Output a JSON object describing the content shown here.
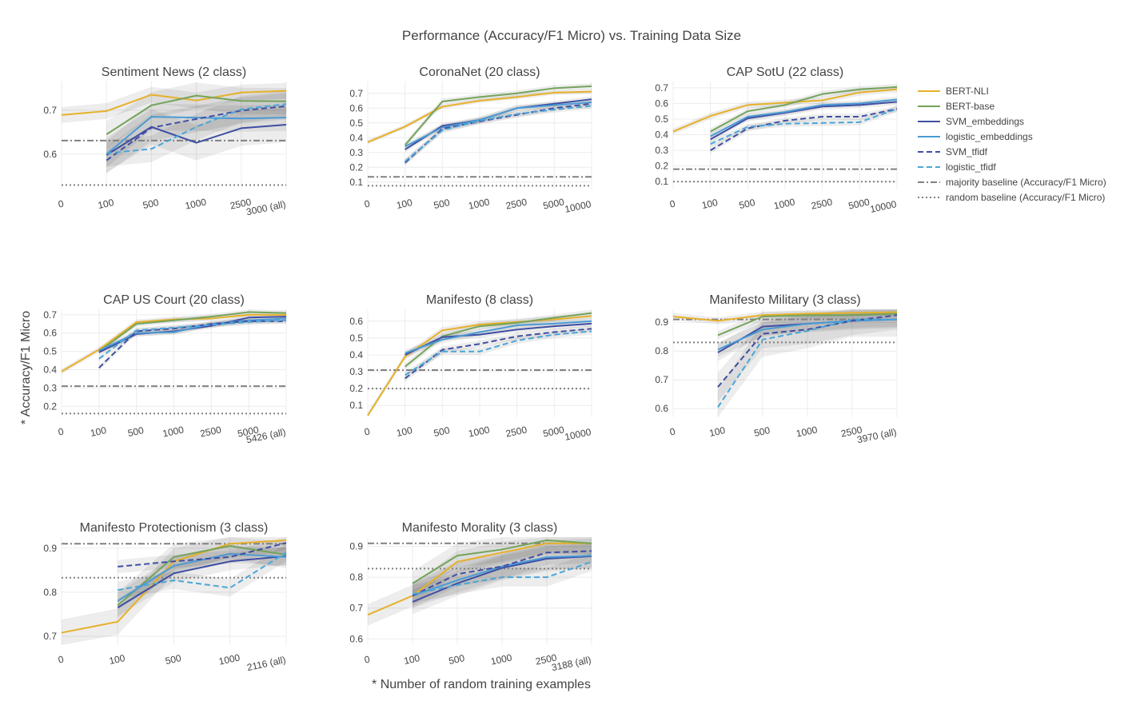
{
  "title": "Performance (Accuracy/F1 Micro) vs. Training Data Size",
  "xlabel": "* Number of random training examples",
  "ylabel": "* Accuracy/F1 Micro",
  "legend": [
    {
      "name": "BERT-NLI",
      "color": "#e6b02a",
      "dash": "solid"
    },
    {
      "name": "BERT-base",
      "color": "#74a35b",
      "dash": "solid"
    },
    {
      "name": "SVM_embeddings",
      "color": "#3f4ea3",
      "dash": "solid"
    },
    {
      "name": "logistic_embeddings",
      "color": "#4a9bd4",
      "dash": "solid"
    },
    {
      "name": "SVM_tfidf",
      "color": "#3f4ea3",
      "dash": "dash"
    },
    {
      "name": "logistic_tfidf",
      "color": "#4aa6d8",
      "dash": "dash"
    },
    {
      "name": "majority baseline (Accuracy/F1 Micro)",
      "color": "#808080",
      "dash": "dashdot"
    },
    {
      "name": "random baseline (Accuracy/F1 Micro)",
      "color": "#808080",
      "dash": "dot"
    }
  ],
  "chart_data": [
    {
      "type": "line",
      "title": "Sentiment News (2 class)",
      "categories": [
        "0",
        "100",
        "500",
        "1000",
        "2500",
        "3000 (all)"
      ],
      "yticks": [
        0.6,
        0.7
      ],
      "ylim": [
        0.52,
        0.765
      ],
      "majority": 0.631,
      "random": 0.53,
      "series": [
        {
          "name": "BERT-NLI",
          "values": [
            0.689,
            0.698,
            0.735,
            0.722,
            0.74,
            0.744
          ],
          "band": 0.018
        },
        {
          "name": "BERT-base",
          "values": [
            null,
            0.645,
            0.711,
            0.733,
            0.721,
            0.72
          ],
          "band": 0.03
        },
        {
          "name": "SVM_embeddings",
          "values": [
            null,
            0.598,
            0.662,
            0.626,
            0.659,
            0.667
          ],
          "band": 0.04
        },
        {
          "name": "logistic_embeddings",
          "values": [
            null,
            0.6,
            0.685,
            0.683,
            0.681,
            0.683
          ],
          "band": 0.03
        },
        {
          "name": "SVM_tfidf",
          "values": [
            null,
            0.586,
            0.66,
            0.68,
            0.699,
            0.709
          ],
          "band": 0.03
        },
        {
          "name": "logistic_tfidf",
          "values": [
            null,
            0.602,
            0.612,
            0.662,
            0.702,
            0.714
          ],
          "band": 0.03
        }
      ]
    },
    {
      "type": "line",
      "title": "CoronaNet (20 class)",
      "categories": [
        "0",
        "100",
        "500",
        "1000",
        "2500",
        "5000",
        "10000"
      ],
      "yticks": [
        0.1,
        0.2,
        0.3,
        0.4,
        0.5,
        0.6,
        0.7
      ],
      "ylim": [
        0.05,
        0.78
      ],
      "majority": 0.135,
      "random": 0.075,
      "series": [
        {
          "name": "BERT-NLI",
          "values": [
            0.37,
            0.475,
            0.61,
            0.65,
            0.675,
            0.705,
            0.712
          ],
          "band": 0.015
        },
        {
          "name": "BERT-base",
          "values": [
            null,
            0.35,
            0.645,
            0.675,
            0.7,
            0.735,
            0.748
          ],
          "band": 0.02
        },
        {
          "name": "SVM_embeddings",
          "values": [
            null,
            0.32,
            0.48,
            0.52,
            0.6,
            0.63,
            0.66
          ],
          "band": 0.02
        },
        {
          "name": "logistic_embeddings",
          "values": [
            null,
            0.34,
            0.47,
            0.52,
            0.6,
            0.62,
            0.64
          ],
          "band": 0.02
        },
        {
          "name": "SVM_tfidf",
          "values": [
            null,
            0.23,
            0.46,
            0.51,
            0.555,
            0.6,
            0.63
          ],
          "band": 0.02
        },
        {
          "name": "logistic_tfidf",
          "values": [
            null,
            0.24,
            0.45,
            0.515,
            0.56,
            0.59,
            0.615
          ],
          "band": 0.02
        }
      ]
    },
    {
      "type": "line",
      "title": "CAP SotU (22 class)",
      "categories": [
        "0",
        "100",
        "500",
        "1000",
        "2500",
        "5000",
        "10000"
      ],
      "yticks": [
        0.1,
        0.2,
        0.3,
        0.4,
        0.5,
        0.6,
        0.7
      ],
      "ylim": [
        0.05,
        0.74
      ],
      "majority": 0.18,
      "random": 0.1,
      "series": [
        {
          "name": "BERT-NLI",
          "values": [
            0.42,
            0.52,
            0.59,
            0.605,
            0.62,
            0.67,
            0.69
          ],
          "band": 0.02
        },
        {
          "name": "BERT-base",
          "values": [
            null,
            0.42,
            0.55,
            0.59,
            0.66,
            0.69,
            0.705
          ],
          "band": 0.02
        },
        {
          "name": "SVM_embeddings",
          "values": [
            null,
            0.37,
            0.505,
            0.54,
            0.58,
            0.59,
            0.61
          ],
          "band": 0.02
        },
        {
          "name": "logistic_embeddings",
          "values": [
            null,
            0.39,
            0.515,
            0.545,
            0.59,
            0.6,
            0.625
          ],
          "band": 0.02
        },
        {
          "name": "SVM_tfidf",
          "values": [
            null,
            0.3,
            0.44,
            0.49,
            0.515,
            0.515,
            0.565
          ],
          "band": 0.02
        },
        {
          "name": "logistic_tfidf",
          "values": [
            null,
            0.34,
            0.45,
            0.47,
            0.475,
            0.48,
            0.565
          ],
          "band": 0.02
        }
      ]
    },
    {
      "type": "line",
      "title": "CAP US Court (20 class)",
      "categories": [
        "0",
        "100",
        "500",
        "1000",
        "2500",
        "5000",
        "5426 (all)"
      ],
      "yticks": [
        0.2,
        0.3,
        0.4,
        0.5,
        0.6,
        0.7
      ],
      "ylim": [
        0.14,
        0.73
      ],
      "majority": 0.31,
      "random": 0.16,
      "series": [
        {
          "name": "BERT-NLI",
          "values": [
            0.39,
            0.51,
            0.66,
            0.675,
            0.68,
            0.7,
            0.7
          ],
          "band": 0.015
        },
        {
          "name": "BERT-base",
          "values": [
            null,
            0.5,
            0.65,
            0.67,
            0.69,
            0.715,
            0.71
          ],
          "band": 0.015
        },
        {
          "name": "SVM_embeddings",
          "values": [
            null,
            0.495,
            0.595,
            0.61,
            0.64,
            0.685,
            0.69
          ],
          "band": 0.015
        },
        {
          "name": "logistic_embeddings",
          "values": [
            null,
            0.505,
            0.6,
            0.605,
            0.65,
            0.67,
            0.68
          ],
          "band": 0.015
        },
        {
          "name": "SVM_tfidf",
          "values": [
            null,
            0.41,
            0.61,
            0.625,
            0.65,
            0.665,
            0.665
          ],
          "band": 0.015
        },
        {
          "name": "logistic_tfidf",
          "values": [
            null,
            0.46,
            0.615,
            0.63,
            0.645,
            0.66,
            0.67
          ],
          "band": 0.015
        }
      ]
    },
    {
      "type": "line",
      "title": "Manifesto (8 class)",
      "categories": [
        "0",
        "100",
        "500",
        "1000",
        "2500",
        "5000",
        "10000"
      ],
      "yticks": [
        0.1,
        0.2,
        0.3,
        0.4,
        0.5,
        0.6
      ],
      "ylim": [
        0.03,
        0.67
      ],
      "majority": 0.31,
      "random": 0.2,
      "series": [
        {
          "name": "BERT-NLI",
          "values": [
            0.04,
            0.39,
            0.545,
            0.58,
            0.595,
            0.61,
            0.63
          ],
          "band": 0.02
        },
        {
          "name": "BERT-base",
          "values": [
            null,
            0.33,
            0.51,
            0.57,
            0.59,
            0.62,
            0.648
          ],
          "band": 0.02
        },
        {
          "name": "SVM_embeddings",
          "values": [
            null,
            0.4,
            0.505,
            0.52,
            0.55,
            0.57,
            0.585
          ],
          "band": 0.02
        },
        {
          "name": "logistic_embeddings",
          "values": [
            null,
            0.41,
            0.49,
            0.535,
            0.575,
            0.585,
            0.6
          ],
          "band": 0.02
        },
        {
          "name": "SVM_tfidf",
          "values": [
            null,
            0.26,
            0.43,
            0.465,
            0.51,
            0.535,
            0.555
          ],
          "band": 0.02
        },
        {
          "name": "logistic_tfidf",
          "values": [
            null,
            0.28,
            0.42,
            0.42,
            0.485,
            0.52,
            0.54
          ],
          "band": 0.02
        }
      ]
    },
    {
      "type": "line",
      "title": "Manifesto Military (3 class)",
      "categories": [
        "0",
        "100",
        "500",
        "1000",
        "2500",
        "3970 (all)"
      ],
      "yticks": [
        0.6,
        0.7,
        0.8,
        0.9
      ],
      "ylim": [
        0.57,
        0.945
      ],
      "majority": 0.91,
      "random": 0.83,
      "series": [
        {
          "name": "BERT-NLI",
          "values": [
            0.92,
            0.905,
            0.925,
            0.93,
            0.933,
            0.935
          ],
          "band": 0.012
        },
        {
          "name": "BERT-base",
          "values": [
            null,
            0.855,
            0.92,
            0.925,
            0.925,
            0.93
          ],
          "band": 0.015
        },
        {
          "name": "SVM_embeddings",
          "values": [
            null,
            0.795,
            0.885,
            0.895,
            0.905,
            0.91
          ],
          "band": 0.03
        },
        {
          "name": "logistic_embeddings",
          "values": [
            null,
            0.805,
            0.875,
            0.895,
            0.905,
            0.91
          ],
          "band": 0.025
        },
        {
          "name": "SVM_tfidf",
          "values": [
            null,
            0.675,
            0.86,
            0.875,
            0.905,
            0.925
          ],
          "band": 0.05
        },
        {
          "name": "logistic_tfidf",
          "values": [
            null,
            0.605,
            0.84,
            0.87,
            0.91,
            0.91
          ],
          "band": 0.06
        }
      ]
    },
    {
      "type": "line",
      "title": "Manifesto Protectionism (3 class)",
      "categories": [
        "0",
        "100",
        "500",
        "1000",
        "2116 (all)"
      ],
      "yticks": [
        0.7,
        0.8,
        0.9
      ],
      "ylim": [
        0.68,
        0.925
      ],
      "majority": 0.91,
      "random": 0.833,
      "series": [
        {
          "name": "BERT-NLI",
          "values": [
            0.708,
            0.733,
            0.87,
            0.91,
            0.918
          ],
          "band": 0.03
        },
        {
          "name": "BERT-base",
          "values": [
            null,
            0.77,
            0.88,
            0.905,
            0.885
          ],
          "band": 0.03
        },
        {
          "name": "SVM_embeddings",
          "values": [
            null,
            0.765,
            0.843,
            0.87,
            0.882
          ],
          "band": 0.02
        },
        {
          "name": "logistic_embeddings",
          "values": [
            null,
            0.78,
            0.86,
            0.887,
            0.88
          ],
          "band": 0.02
        },
        {
          "name": "SVM_tfidf",
          "values": [
            null,
            0.858,
            0.87,
            0.88,
            0.912
          ],
          "band": 0.015
        },
        {
          "name": "logistic_tfidf",
          "values": [
            null,
            0.805,
            0.827,
            0.81,
            0.89
          ],
          "band": 0.02
        }
      ]
    },
    {
      "type": "line",
      "title": "Manifesto Morality (3 class)",
      "categories": [
        "0",
        "100",
        "500",
        "1000",
        "2500",
        "3188 (all)"
      ],
      "yticks": [
        0.6,
        0.7,
        0.8,
        0.9
      ],
      "ylim": [
        0.58,
        0.93
      ],
      "majority": 0.91,
      "random": 0.828,
      "series": [
        {
          "name": "BERT-NLI",
          "values": [
            0.678,
            0.74,
            0.85,
            0.88,
            0.91,
            0.91
          ],
          "band": 0.035
        },
        {
          "name": "BERT-base",
          "values": [
            null,
            0.78,
            0.87,
            0.89,
            0.92,
            0.91
          ],
          "band": 0.04
        },
        {
          "name": "SVM_embeddings",
          "values": [
            null,
            0.72,
            0.78,
            0.83,
            0.86,
            0.868
          ],
          "band": 0.04
        },
        {
          "name": "logistic_embeddings",
          "values": [
            null,
            0.74,
            0.79,
            0.835,
            0.865,
            0.87
          ],
          "band": 0.04
        },
        {
          "name": "SVM_tfidf",
          "values": [
            null,
            0.74,
            0.81,
            0.835,
            0.88,
            0.885
          ],
          "band": 0.04
        },
        {
          "name": "logistic_tfidf",
          "values": [
            null,
            0.745,
            0.775,
            0.8,
            0.8,
            0.85
          ],
          "band": 0.03
        }
      ]
    }
  ]
}
